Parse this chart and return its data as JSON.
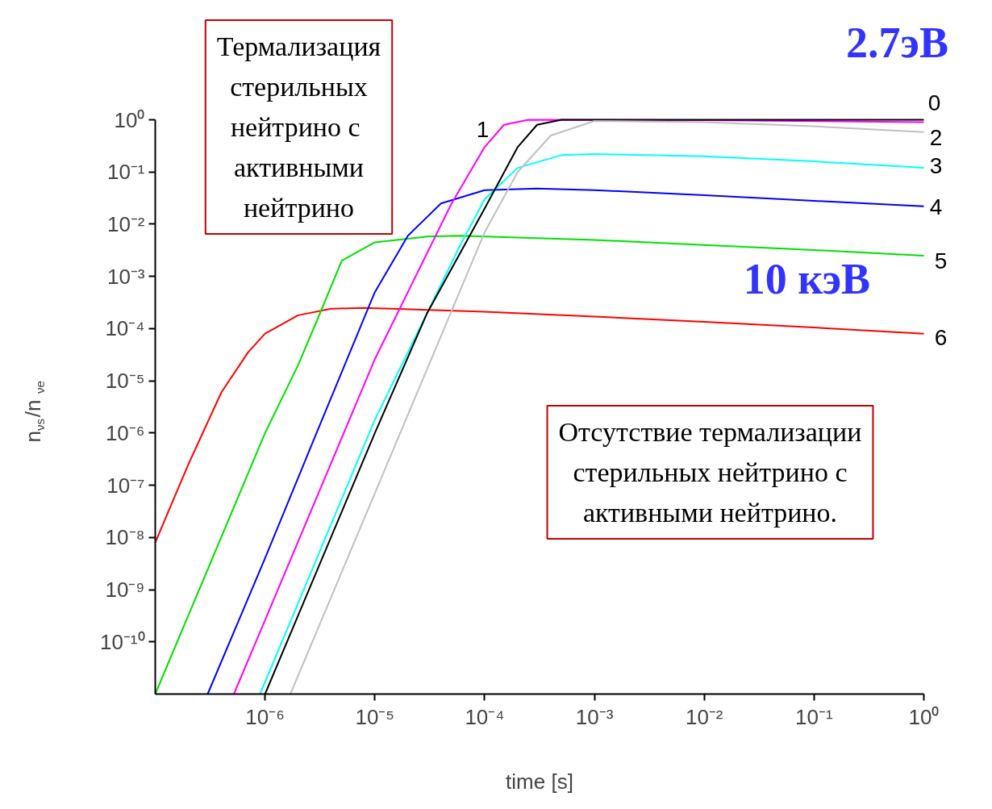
{
  "chart_data": {
    "type": "line",
    "xlabel": "time [s]",
    "ylabel": "n$_{νs}$/n$_{νe}$",
    "log": "xy",
    "grid": false,
    "line_style": "solid",
    "marker": "none",
    "xlim": [
      1e-07,
      1
    ],
    "ylim": [
      1e-11,
      1
    ],
    "xticks": [
      {
        "value": 1e-06,
        "label": "10⁻⁶"
      },
      {
        "value": 1e-05,
        "label": "10⁻⁵"
      },
      {
        "value": 0.0001,
        "label": "10⁻⁴"
      },
      {
        "value": 0.001,
        "label": "10⁻³"
      },
      {
        "value": 0.01,
        "label": "10⁻²"
      },
      {
        "value": 0.1,
        "label": "10⁻¹"
      },
      {
        "value": 1,
        "label": "10⁰"
      }
    ],
    "yticks": [
      {
        "value": 1e-10,
        "label": "10⁻¹⁰"
      },
      {
        "value": 1e-09,
        "label": "10⁻⁹"
      },
      {
        "value": 1e-08,
        "label": "10⁻⁸"
      },
      {
        "value": 1e-07,
        "label": "10⁻⁷"
      },
      {
        "value": 1e-06,
        "label": "10⁻⁶"
      },
      {
        "value": 1e-05,
        "label": "10⁻⁵"
      },
      {
        "value": 0.0001,
        "label": "10⁻⁴"
      },
      {
        "value": 0.001,
        "label": "10⁻³"
      },
      {
        "value": 0.01,
        "label": "10⁻²"
      },
      {
        "value": 0.1,
        "label": "10⁻¹"
      },
      {
        "value": 1,
        "label": "10⁰"
      }
    ],
    "series": [
      {
        "color": "#ff0000",
        "x": [
          1e-07,
          2e-07,
          4e-07,
          7e-07,
          1e-06,
          2e-06,
          4e-06,
          8e-06,
          0.0001,
          0.001,
          0.01,
          0.1,
          1
        ],
        "values": [
          8e-09,
          2.5e-07,
          6e-06,
          3.5e-05,
          8e-05,
          0.00018,
          0.00024,
          0.00025,
          0.00021,
          0.00017,
          0.000135,
          0.000105,
          8e-05
        ]
      },
      {
        "color": "#00e000",
        "x": [
          1e-07,
          1e-06,
          2e-06,
          3e-06,
          5e-06,
          1e-05,
          3e-05,
          6e-05,
          0.001,
          0.01,
          0.1,
          1
        ],
        "values": [
          1e-11,
          1e-06,
          2e-05,
          0.00015,
          0.002,
          0.0045,
          0.0058,
          0.006,
          0.005,
          0.004,
          0.0032,
          0.0025
        ]
      },
      {
        "color": "#0000ff",
        "x": [
          3e-07,
          1e-06,
          3e-06,
          1e-05,
          2e-05,
          4e-05,
          0.0001,
          0.0003,
          0.001,
          0.01,
          0.1,
          1
        ],
        "values": [
          1e-11,
          4e-09,
          1.1e-06,
          0.0005,
          0.006,
          0.025,
          0.045,
          0.048,
          0.045,
          0.036,
          0.028,
          0.022
        ]
      },
      {
        "color": "#ff00ff",
        "x": [
          5.2e-07,
          1e-06,
          1e-05,
          5e-05,
          0.0001,
          0.00015,
          0.00025,
          0.01,
          1
        ],
        "values": [
          1e-11,
          2.6e-10,
          2.6e-05,
          0.025,
          0.3,
          0.8,
          1,
          0.98,
          0.9
        ]
      },
      {
        "color": "#00ffff",
        "x": [
          9e-07,
          1e-05,
          3e-05,
          6e-05,
          0.0001,
          0.0002,
          0.0005,
          0.001,
          0.01,
          0.1,
          1
        ],
        "values": [
          1e-11,
          1.8e-06,
          0.0002,
          0.004,
          0.03,
          0.12,
          0.21,
          0.22,
          0.2,
          0.16,
          0.12
        ]
      },
      {
        "color": "#000000",
        "x": [
          1e-06,
          1e-05,
          3e-05,
          0.0001,
          0.0002,
          0.0003,
          0.0005,
          1
        ],
        "values": [
          1e-11,
          1e-06,
          0.0002,
          0.02,
          0.3,
          0.8,
          1,
          1
        ]
      },
      {
        "color": "#c0c0c0",
        "x": [
          1.7e-06,
          1e-05,
          0.0001,
          0.0002,
          0.0004,
          0.001,
          0.01,
          0.1,
          1
        ],
        "values": [
          1e-11,
          7e-08,
          0.007,
          0.1,
          0.5,
          0.95,
          0.9,
          0.75,
          0.58
        ]
      }
    ],
    "annotations": [
      "0",
      "1",
      "2",
      "3",
      "4",
      "5",
      "6",
      "Термализация\nстерильных\nнейтрино  с\nактивными\nнейтрино",
      "Отсутствие термализации\nстерильных нейтрино с\nактивными нейтрино.",
      "2.7эВ",
      "10 кэВ"
    ]
  }
}
